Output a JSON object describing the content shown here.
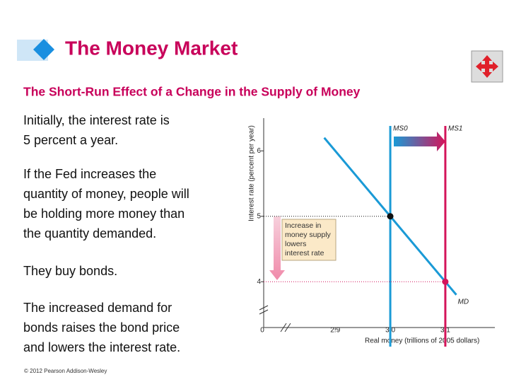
{
  "header": {
    "title": "The Money Market",
    "subtitle": "The Short-Run Effect of a Change in the Supply of Money"
  },
  "body": {
    "paragraphs": [
      [
        "Initially, the interest rate is",
        "5 percent a year."
      ],
      [
        "If the Fed increases the",
        "quantity of money, people will",
        "be holding more money than",
        "the quantity demanded."
      ],
      [
        "They buy bonds."
      ],
      [
        "The increased demand for",
        "bonds raises the bond price",
        "and lowers the interest rate."
      ]
    ]
  },
  "footer": "© 2012 Pearson Addison-Wesley",
  "chart_data": {
    "type": "line",
    "x_label": "Real money (trillions of 2005 dollars)",
    "y_label": "Interest rate (percent per year)",
    "origin_label": "0",
    "xlim": [
      2.77,
      3.19
    ],
    "ylim": [
      3.3,
      6.5
    ],
    "xticks": [
      2.9,
      {
        "value": 3,
        "label": "3.0"
      },
      3.1
    ],
    "yticks": [
      4,
      5,
      6
    ],
    "series": [
      {
        "name": "MD",
        "color": "#1a9ad6",
        "x": [
          2.88,
          3.0,
          3.1,
          3.12
        ],
        "values": [
          6.2,
          5,
          4,
          3.8
        ]
      }
    ],
    "vertical_lines": [
      {
        "name": "MS0",
        "x": 3.0,
        "color": "#1a9ad6"
      },
      {
        "name": "MS1",
        "x": 3.1,
        "color": "#d4145a"
      }
    ],
    "points": [
      {
        "x": 3.0,
        "y": 5,
        "color": "#111111"
      },
      {
        "x": 3.1,
        "y": 4,
        "color": "#d4145a"
      }
    ],
    "annotation": [
      "Increase in",
      "money supply",
      "lowers",
      "interest rate"
    ]
  }
}
